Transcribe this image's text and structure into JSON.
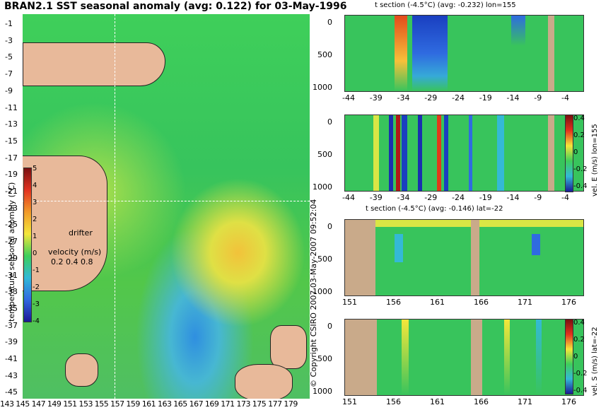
{
  "main_title": "BRAN2.1 SST seasonal anomaly (avg: 0.122) for 03-May-1996",
  "map": {
    "lat_ticks": [
      "-1",
      "-3",
      "-5",
      "-7",
      "-9",
      "-11",
      "-13",
      "-15",
      "-17",
      "-19",
      "-21",
      "-23",
      "-25",
      "-27",
      "-29",
      "-31",
      "-33",
      "-35",
      "-37",
      "-39",
      "-41",
      "-43",
      "-45"
    ],
    "lon_ticks": [
      "143",
      "145",
      "147",
      "149",
      "151",
      "153",
      "155",
      "157",
      "159",
      "161",
      "163",
      "165",
      "167",
      "169",
      "171",
      "173",
      "175",
      "177",
      "179"
    ],
    "colorbar_label": "temperature seasonal anomaly (°C)",
    "colorbar_ticks": [
      "5",
      "4",
      "3",
      "2",
      "1",
      "0",
      "-1",
      "-2",
      "-3",
      "-4"
    ],
    "drifter_label": "drifter",
    "velocity_label": "velocity (m/s)",
    "velocity_scale": "0.2 0.4 0.8"
  },
  "panels": [
    {
      "title": "t section (-4.5°C) (avg: -0.232) lon=155",
      "y_ticks": [
        "0",
        "500",
        "1000"
      ],
      "x_ticks": [
        "-44",
        "-39",
        "-34",
        "-29",
        "-24",
        "-19",
        "-14",
        "-9",
        "-4"
      ]
    },
    {
      "title": "",
      "y_ticks": [
        "0",
        "500",
        "1000"
      ],
      "x_ticks": [
        "-44",
        "-39",
        "-34",
        "-29",
        "-24",
        "-19",
        "-14",
        "-9",
        "-4"
      ],
      "colorbar_label": "vel. E (m/s) lon=155",
      "colorbar_ticks": [
        "0.4",
        "0.2",
        "0",
        "-0.2",
        "-0.4"
      ]
    },
    {
      "title": "t section (-4.5°C) (avg: -0.146) lat=-22",
      "y_ticks": [
        "0",
        "500",
        "1000"
      ],
      "x_ticks": [
        "151",
        "156",
        "161",
        "166",
        "171",
        "176"
      ]
    },
    {
      "title": "",
      "y_ticks": [
        "0",
        "500",
        "1000"
      ],
      "x_ticks": [
        "151",
        "156",
        "161",
        "166",
        "171",
        "176"
      ],
      "colorbar_label": "vel. S (m/s) lat=-22",
      "colorbar_ticks": [
        "0.4",
        "0.2",
        "0",
        "-0.2",
        "-0.4"
      ]
    }
  ],
  "copyright": "© Copyright CSIRO 2007  03-May-2007 09:52:04"
}
